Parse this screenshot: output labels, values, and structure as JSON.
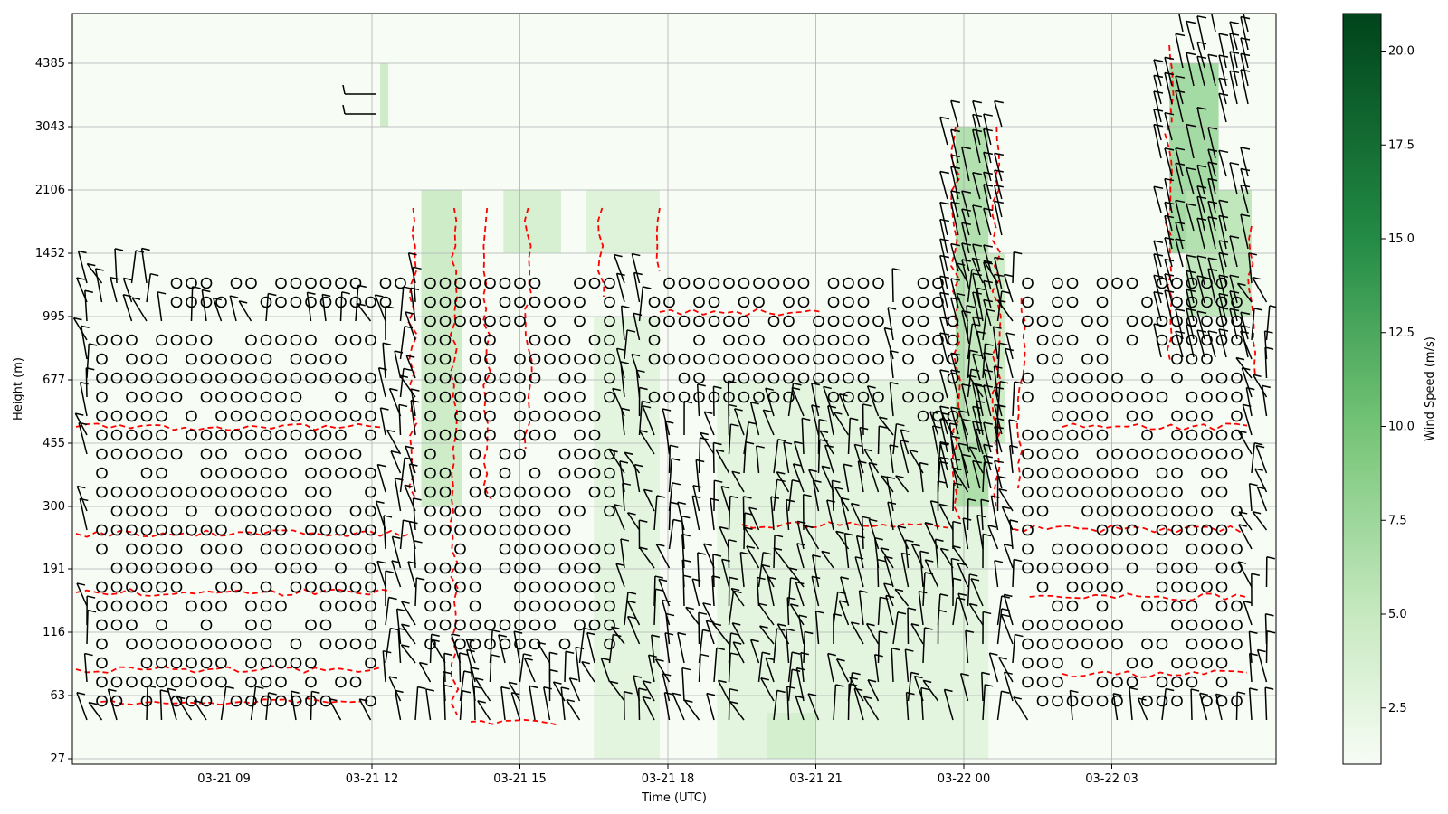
{
  "chart_data": {
    "type": "heatmap",
    "title": "",
    "xlabel": "Time (UTC)",
    "ylabel": "Height (m)",
    "x_range": [
      "2021-03-21 06:00",
      "2021-03-22 05:50"
    ],
    "x_ticks": [
      {
        "label": "03-21 09",
        "value": "2021-03-21 09:00"
      },
      {
        "label": "03-21 12",
        "value": "2021-03-21 12:00"
      },
      {
        "label": "03-21 15",
        "value": "2021-03-21 15:00"
      },
      {
        "label": "03-21 18",
        "value": "2021-03-21 18:00"
      },
      {
        "label": "03-21 21",
        "value": "2021-03-21 21:00"
      },
      {
        "label": "03-22 00",
        "value": "2021-03-22 00:00"
      },
      {
        "label": "03-22 03",
        "value": "2021-03-22 03:00"
      }
    ],
    "y_ticks": [
      "27",
      "63",
      "116",
      "191",
      "300",
      "455",
      "677",
      "995",
      "1452",
      "2106",
      "3043",
      "4385"
    ],
    "grid": true,
    "colorbar": {
      "label": "Wind Speed (m/s)",
      "ticks": [
        "2.5",
        "5.0",
        "7.5",
        "10.0",
        "12.5",
        "15.0",
        "17.5",
        "20.0"
      ],
      "range": [
        1,
        21
      ],
      "colormap": [
        "#f7fcf5",
        "#c7e9c0",
        "#74c476",
        "#238b45",
        "#00441b"
      ]
    },
    "contour_color": "#ff0000",
    "barb_color": "#000000",
    "wind_regions": [
      {
        "time_start": "2021-03-21 13:00",
        "time_end": "2021-03-21 13:50",
        "level_from": 300,
        "level_to": 2106,
        "speed": 6
      },
      {
        "time_start": "2021-03-21 14:40",
        "time_end": "2021-03-21 15:50",
        "level_from": 1452,
        "level_to": 2106,
        "speed": 5
      },
      {
        "time_start": "2021-03-21 16:20",
        "time_end": "2021-03-21 17:50",
        "level_from": 1452,
        "level_to": 2106,
        "speed": 4
      },
      {
        "time_start": "2021-03-21 16:30",
        "time_end": "2021-03-21 17:50",
        "level_from": 27,
        "level_to": 995,
        "speed": 3.5
      },
      {
        "time_start": "2021-03-21 19:00",
        "time_end": "2021-03-22 00:30",
        "level_from": 27,
        "level_to": 677,
        "speed": 3.5
      },
      {
        "time_start": "2021-03-21 20:00",
        "time_end": "2021-03-21 21:00",
        "level_from": 27,
        "level_to": 50,
        "speed": 5
      },
      {
        "time_start": "2021-03-21 23:50",
        "time_end": "2021-03-22 00:30",
        "level_from": 300,
        "level_to": 3043,
        "speed": 8
      },
      {
        "time_start": "2021-03-22 00:00",
        "time_end": "2021-03-22 00:50",
        "level_from": 455,
        "level_to": 1452,
        "speed": 6
      },
      {
        "time_start": "2021-03-22 04:10",
        "time_end": "2021-03-22 05:10",
        "level_from": 1452,
        "level_to": 4385,
        "speed": 9
      },
      {
        "time_start": "2021-03-22 04:30",
        "time_end": "2021-03-22 05:50",
        "level_from": 995,
        "level_to": 2106,
        "speed": 7
      },
      {
        "time_start": "2021-03-21 12:10",
        "time_end": "2021-03-21 12:20",
        "level_from": 3043,
        "level_to": 4385,
        "speed": 6
      }
    ],
    "calm_regions": [
      {
        "time_start": "2021-03-21 06:30",
        "time_end": "2021-03-21 12:10",
        "level_from": 50,
        "level_to": 900
      },
      {
        "time_start": "2021-03-21 08:00",
        "time_end": "2021-03-21 12:40",
        "level_from": 995,
        "level_to": 1452
      },
      {
        "time_start": "2021-03-21 13:00",
        "time_end": "2021-03-21 16:50",
        "level_from": 90,
        "level_to": 1452
      },
      {
        "time_start": "2021-03-21 17:40",
        "time_end": "2021-03-21 22:20",
        "level_from": 600,
        "level_to": 1452
      },
      {
        "time_start": "2021-03-21 22:40",
        "time_end": "2021-03-22 00:00",
        "level_from": 500,
        "level_to": 1600
      },
      {
        "time_start": "2021-03-22 01:10",
        "time_end": "2021-03-22 05:50",
        "level_from": 50,
        "level_to": 1452
      }
    ]
  }
}
